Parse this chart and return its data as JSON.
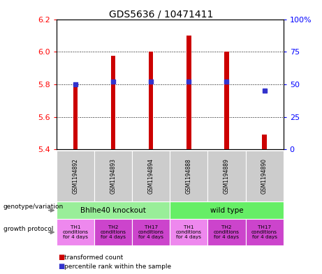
{
  "title": "GDS5636 / 10471411",
  "samples": [
    "GSM1194892",
    "GSM1194893",
    "GSM1194894",
    "GSM1194888",
    "GSM1194889",
    "GSM1194890"
  ],
  "transformed_counts": [
    5.81,
    5.975,
    6.0,
    6.1,
    6.0,
    5.49
  ],
  "percentile_ranks": [
    50,
    52,
    52,
    52,
    52,
    45
  ],
  "ymin": 5.4,
  "ymax": 6.2,
  "y_ticks": [
    5.4,
    5.6,
    5.8,
    6.0,
    6.2
  ],
  "y2min": 0,
  "y2max": 100,
  "y2_ticks": [
    0,
    25,
    50,
    75,
    100
  ],
  "y2_tick_labels": [
    "0",
    "25",
    "50",
    "75",
    "100%"
  ],
  "bar_color": "#cc0000",
  "percentile_color": "#3333cc",
  "genotype_groups": [
    {
      "label": "Bhlhe40 knockout",
      "start": 0,
      "end": 3,
      "color": "#99ee99"
    },
    {
      "label": "wild type",
      "start": 3,
      "end": 6,
      "color": "#66ee66"
    }
  ],
  "growth_protocols": [
    {
      "label": "TH1\nconditions\nfor 4 days",
      "col": 0,
      "color": "#ee88ee"
    },
    {
      "label": "TH2\nconditions\nfor 4 days",
      "col": 1,
      "color": "#cc44cc"
    },
    {
      "label": "TH17\nconditions\nfor 4 days",
      "col": 2,
      "color": "#cc44cc"
    },
    {
      "label": "TH1\nconditions\nfor 4 days",
      "col": 3,
      "color": "#ee88ee"
    },
    {
      "label": "TH2\nconditions\nfor 4 days",
      "col": 4,
      "color": "#cc44cc"
    },
    {
      "label": "TH17\nconditions\nfor 4 days",
      "col": 5,
      "color": "#cc44cc"
    }
  ],
  "sample_bg_color": "#cccccc",
  "legend_red_label": "transformed count",
  "legend_blue_label": "percentile rank within the sample",
  "xlabel_genotype": "genotype/variation",
  "xlabel_growth": "growth protocol",
  "bar_width": 0.12
}
